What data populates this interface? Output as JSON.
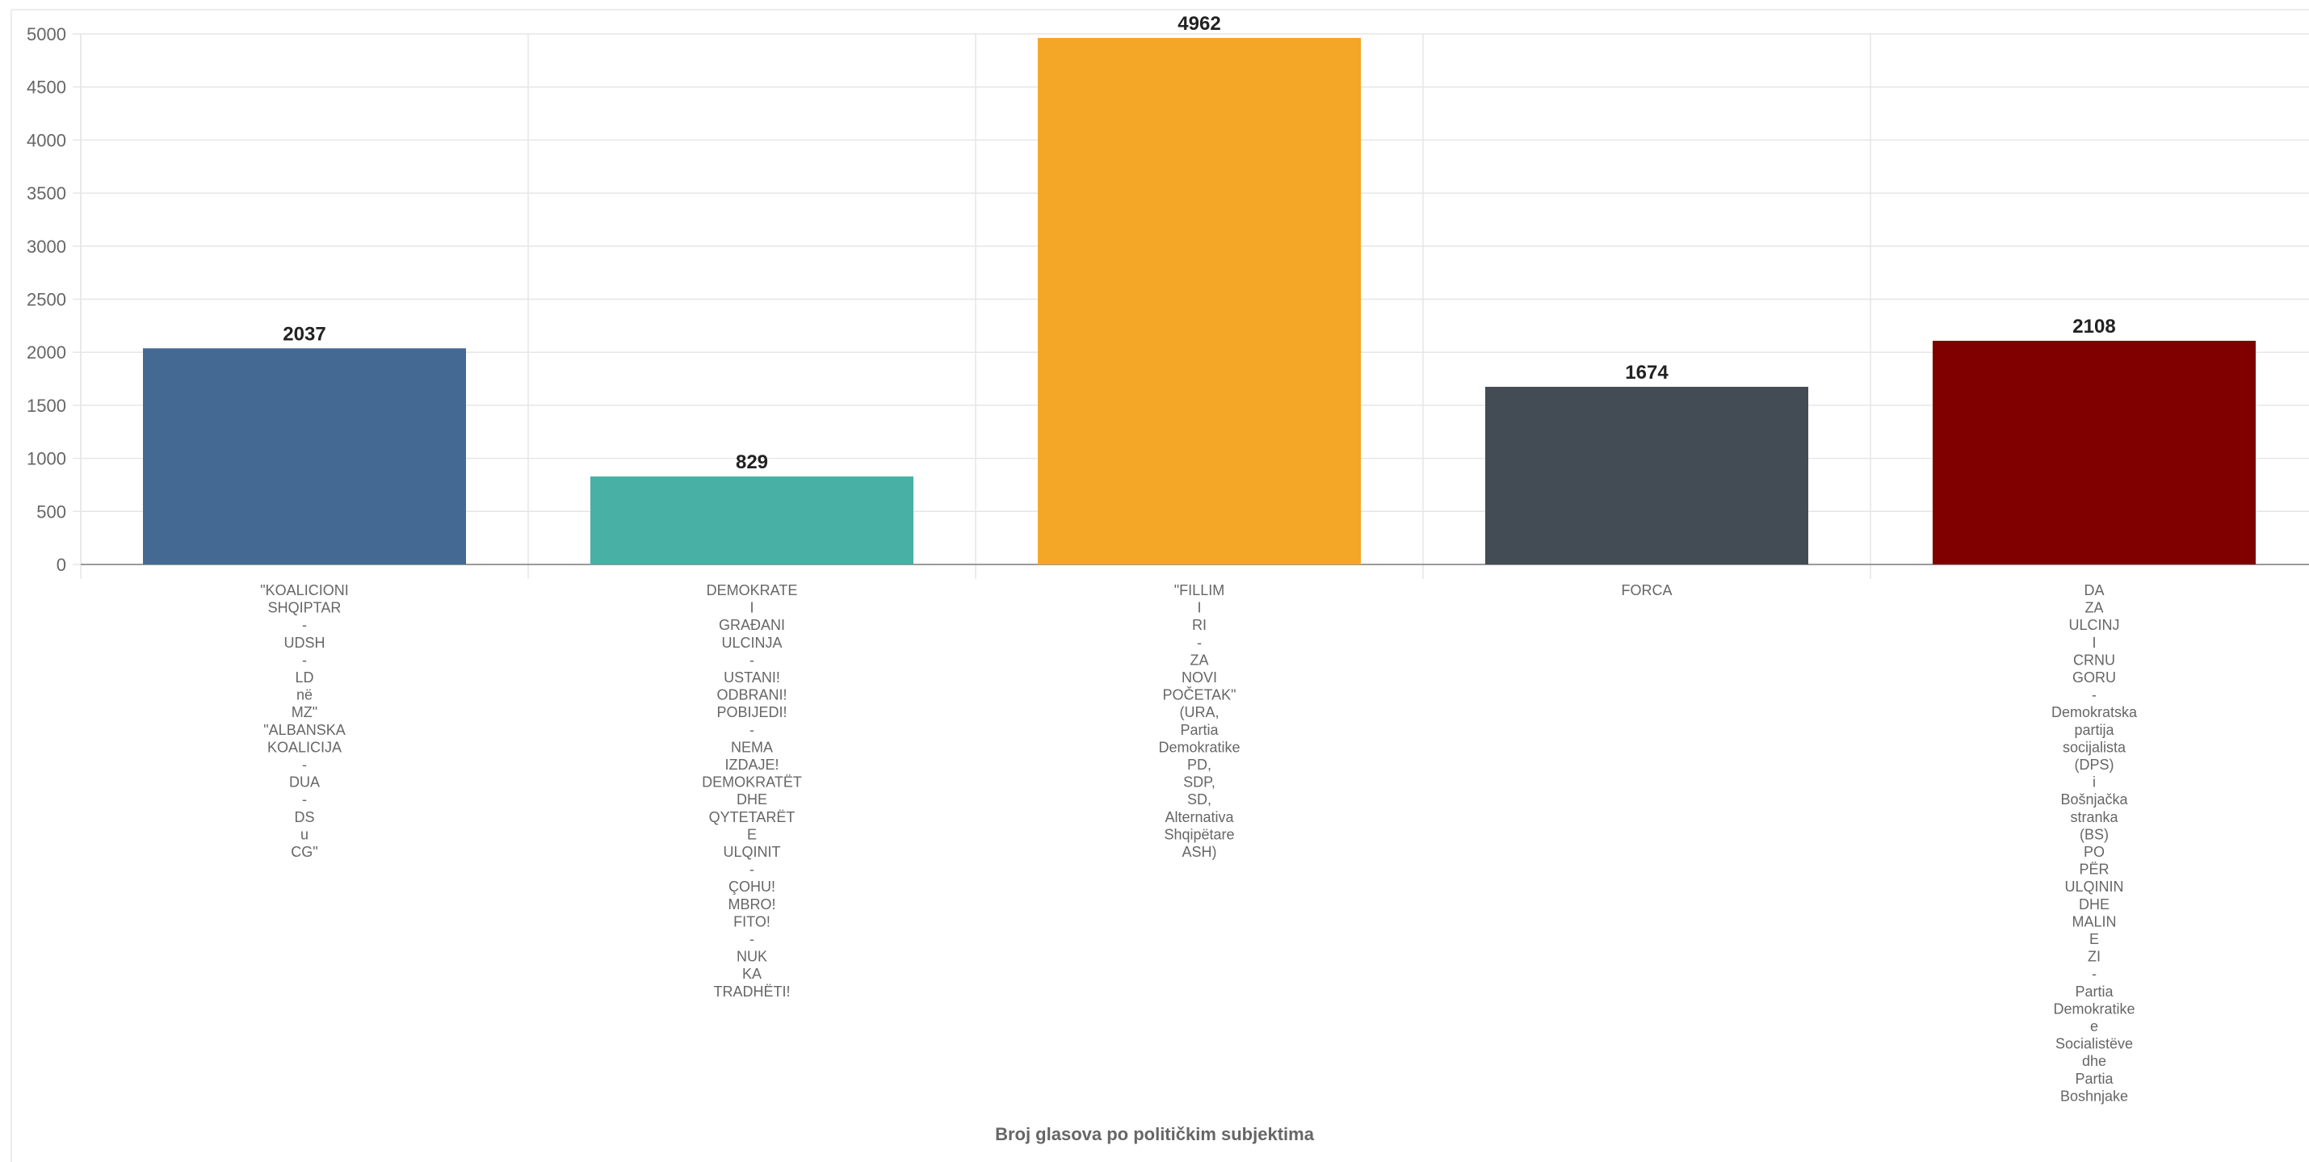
{
  "chart_data": {
    "type": "bar",
    "categories": [
      [
        "\"KOALICIONI",
        "SHQIPTAR",
        "-",
        "UDSH",
        "-",
        "LD",
        "në",
        "MZ\"",
        "\"ALBANSKA",
        "KOALICIJA",
        "-",
        "DUA",
        "-",
        "DS",
        "u",
        "CG\""
      ],
      [
        "DEMOKRATE",
        "I",
        "GRAĐANI",
        "ULCINJA",
        "-",
        "USTANI!",
        "ODBRANI!",
        "POBIJEDI!",
        "-",
        "NEMA",
        "IZDAJE!",
        "DEMOKRATËT",
        "DHE",
        "QYTETARËT",
        "E",
        "ULQINIT",
        "-",
        "ÇOHU!",
        "MBRO!",
        "FITO!",
        "-",
        "NUK",
        "KA",
        "TRADHËTI!"
      ],
      [
        "\"FILLIM",
        "I",
        "RI",
        "-",
        "ZA",
        "NOVI",
        "POČETAK\"",
        "(URA,",
        "Partia",
        "Demokratike",
        "PD,",
        "SDP,",
        "SD,",
        "Alternativa",
        "Shqipëtare",
        "ASH)"
      ],
      [
        "FORCA"
      ],
      [
        "DA",
        "ZA",
        "ULCINJ",
        "I",
        "CRNU",
        "GORU",
        "-",
        "Demokratska",
        "partija",
        "socijalista",
        "(DPS)",
        "i",
        "Bošnjačka",
        "stranka",
        "(BS)",
        "PO",
        "PËR",
        "ULQININ",
        "DHE",
        "MALIN",
        "E",
        "ZI",
        "-",
        "Partia",
        "Demokratike",
        "e",
        "Socialistëve",
        "dhe",
        "Partia",
        "Boshnjake"
      ]
    ],
    "values": [
      2037,
      829,
      4962,
      1674,
      2108
    ],
    "value_labels": [
      "2037",
      "829",
      "4962",
      "1674",
      "2108"
    ],
    "colors": [
      "#446a93",
      "#48b0a5",
      "#f4a626",
      "#434c55",
      "#800000"
    ],
    "y_ticks": [
      0,
      500,
      1000,
      1500,
      2000,
      2500,
      3000,
      3500,
      4000,
      4500,
      5000
    ],
    "y_tick_labels": [
      "0",
      "500",
      "1000",
      "1500",
      "2000",
      "2500",
      "3000",
      "3500",
      "4000",
      "4500",
      "5000"
    ],
    "ylim": [
      0,
      5000
    ],
    "grid": true,
    "legend": "none",
    "title": "",
    "ylabel": "",
    "xlabel": "Broj glasova po političkim subjektima"
  }
}
